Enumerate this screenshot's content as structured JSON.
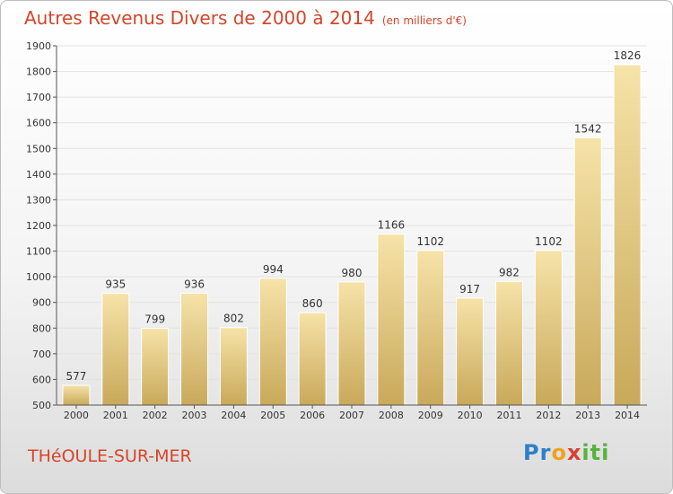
{
  "title": "Autres Revenus Divers de 2000 à 2014",
  "unit": "(en milliers d'€)",
  "place": "THéOULE-SUR-MER",
  "brand": {
    "p1": "Pr",
    "p2": "o",
    "p3": "x",
    "p4": "iti"
  },
  "colors": {
    "title": "#d5452a",
    "bar_light": "#f6e3a8",
    "bar_dark": "#c9a95a",
    "axis": "#555555",
    "grid": "#e2e2e2"
  },
  "chart_data": {
    "type": "bar",
    "categories": [
      "2000",
      "2001",
      "2002",
      "2003",
      "2004",
      "2005",
      "2006",
      "2007",
      "2008",
      "2009",
      "2010",
      "2011",
      "2012",
      "2013",
      "2014"
    ],
    "values": [
      577,
      935,
      799,
      936,
      802,
      994,
      860,
      980,
      1166,
      1102,
      917,
      982,
      1102,
      1542,
      1826
    ],
    "ylim": [
      500,
      1900
    ],
    "yticks": [
      500,
      600,
      700,
      800,
      900,
      1000,
      1100,
      1200,
      1300,
      1400,
      1500,
      1600,
      1700,
      1800,
      1900
    ],
    "grid": true
  }
}
